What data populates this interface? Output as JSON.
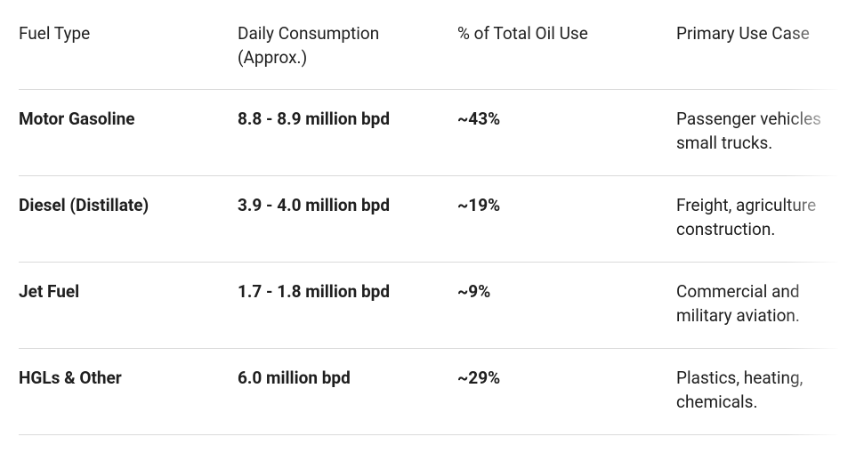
{
  "table": {
    "header": [
      "Fuel Type",
      [
        "Daily Consumption",
        "(Approx.)"
      ],
      "% of Total Oil Use",
      "Primary Use Case"
    ],
    "rows": [
      [
        "Motor Gasoline",
        "8.8 - 8.9 million bpd",
        "~43%",
        [
          "Passenger vehicles",
          "small trucks."
        ]
      ],
      [
        "Diesel (Distillate)",
        "3.9 - 4.0 million bpd",
        "~19%",
        [
          "Freight, agriculture",
          "construction."
        ]
      ],
      [
        "Jet Fuel",
        "1.7 - 1.8 million bpd",
        "~9%",
        [
          "Commercial and",
          "military aviation."
        ]
      ],
      [
        "HGLs & Other",
        "6.0 million bpd",
        "~29%",
        [
          "Plastics, heating,",
          "chemicals."
        ]
      ]
    ]
  }
}
